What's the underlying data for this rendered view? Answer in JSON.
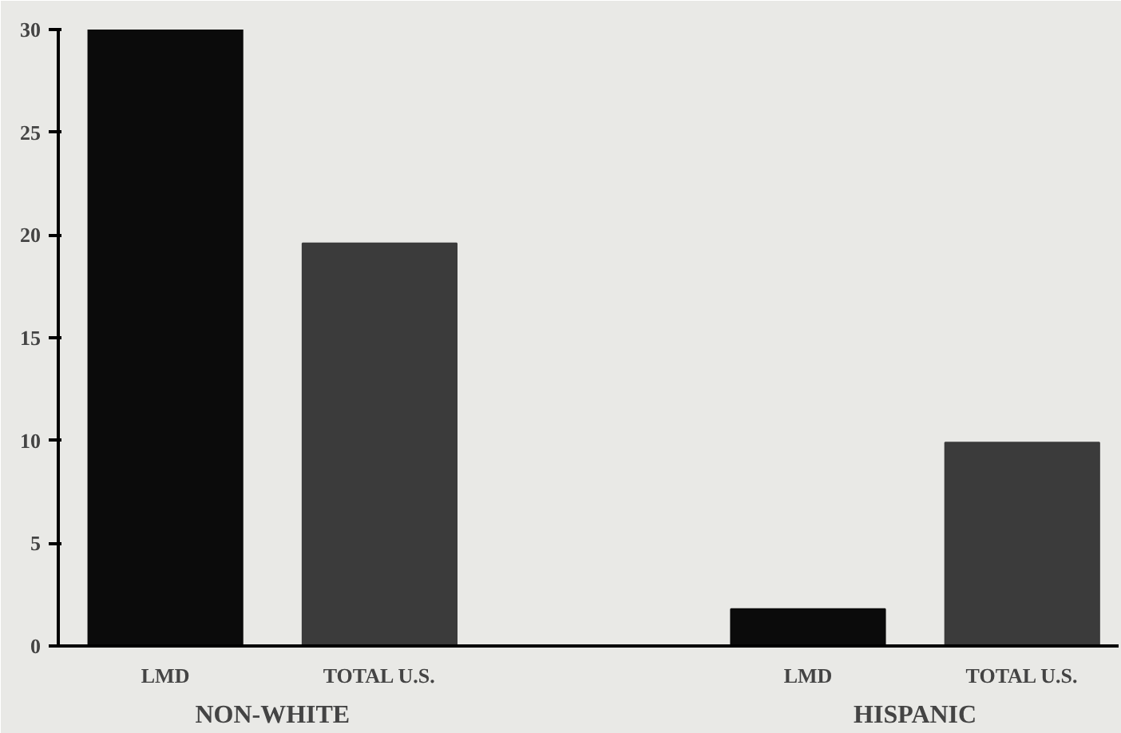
{
  "chart_data": {
    "type": "bar",
    "categories": [
      "LMD",
      "TOTAL U.S.",
      "LMD",
      "TOTAL U.S."
    ],
    "values": [
      30,
      19.6,
      1.8,
      9.9
    ],
    "colors": [
      "#0b0b0b",
      "#3b3b3b",
      "#0b0b0b",
      "#3b3b3b"
    ],
    "ylim": [
      0,
      30
    ],
    "yticks": [
      0,
      5,
      10,
      15,
      20,
      25,
      30
    ],
    "annotations": [
      "NON-WHITE",
      "HISPANIC"
    ]
  }
}
